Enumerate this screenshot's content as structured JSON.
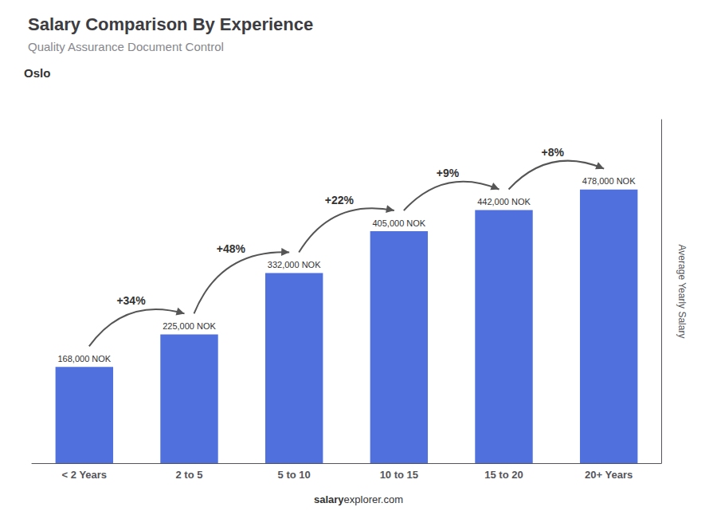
{
  "chart_data": {
    "type": "bar",
    "title": "Salary Comparison By Experience",
    "subtitle": "Quality Assurance Document Control",
    "ylabel": "Average Yearly Salary",
    "categories": [
      "< 2 Years",
      "2 to 5",
      "5 to 10",
      "10 to 15",
      "15 to 20",
      "20+ Years"
    ],
    "values": [
      168000,
      225000,
      332000,
      405000,
      442000,
      478000
    ],
    "value_labels": [
      "168,000 NOK",
      "225,000 NOK",
      "332,000 NOK",
      "405,000 NOK",
      "442,000 NOK",
      "478,000 NOK"
    ],
    "data_labels": true,
    "changes": [
      {
        "value": 34,
        "label": "+34%"
      },
      {
        "value": 48,
        "label": "+48%"
      },
      {
        "value": 22,
        "label": "+22%"
      },
      {
        "value": 9,
        "label": "+9%"
      },
      {
        "value": 8,
        "label": "+8%"
      }
    ],
    "annotations": [
      "Oslo",
      "salary",
      "explorer.com"
    ],
    "ylim": [
      0,
      600000
    ],
    "grid": false,
    "tick_labels": "x"
  }
}
